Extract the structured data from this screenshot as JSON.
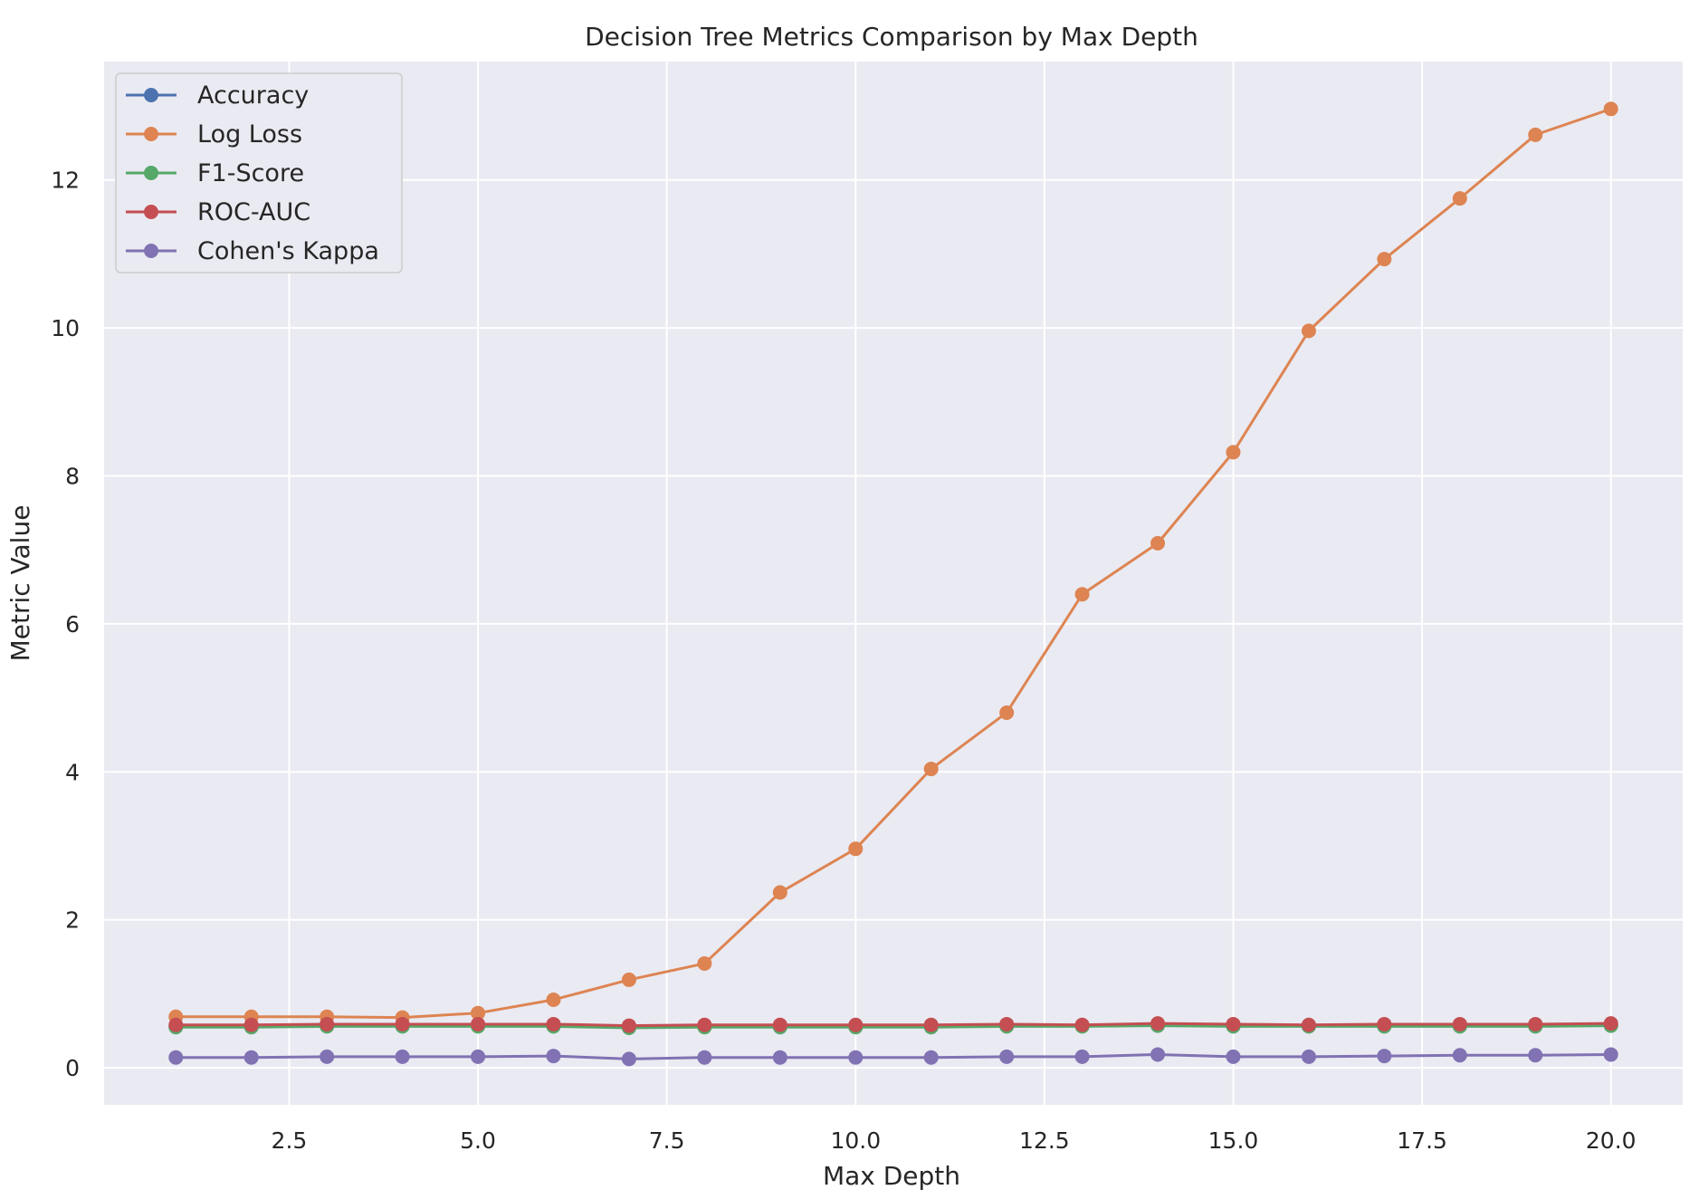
{
  "chart_data": {
    "type": "line",
    "title": "Decision Tree Metrics Comparison by Max Depth",
    "xlabel": "Max Depth",
    "ylabel": "Metric Value",
    "xlim": [
      0.05,
      20.95
    ],
    "ylim": [
      -0.5,
      13.6
    ],
    "xticks": [
      2.5,
      5.0,
      7.5,
      10.0,
      12.5,
      15.0,
      17.5,
      20.0
    ],
    "xtick_labels": [
      "2.5",
      "5.0",
      "7.5",
      "10.0",
      "12.5",
      "15.0",
      "17.5",
      "20.0"
    ],
    "yticks": [
      0,
      2,
      4,
      6,
      8,
      10,
      12
    ],
    "ytick_labels": [
      "0",
      "2",
      "4",
      "6",
      "8",
      "10",
      "12"
    ],
    "grid": true,
    "legend_position": "top-left",
    "x": [
      1,
      2,
      3,
      4,
      5,
      6,
      7,
      8,
      9,
      10,
      11,
      12,
      13,
      14,
      15,
      16,
      17,
      18,
      19,
      20
    ],
    "series": [
      {
        "name": "Accuracy",
        "color": "#4c72b0",
        "values": [
          0.56,
          0.56,
          0.57,
          0.57,
          0.57,
          0.57,
          0.55,
          0.56,
          0.56,
          0.56,
          0.56,
          0.57,
          0.57,
          0.58,
          0.57,
          0.57,
          0.57,
          0.57,
          0.57,
          0.58
        ]
      },
      {
        "name": "Log Loss",
        "color": "#dd8452",
        "values": [
          0.69,
          0.69,
          0.69,
          0.68,
          0.74,
          0.92,
          1.19,
          1.41,
          2.37,
          2.96,
          4.04,
          4.8,
          6.4,
          7.09,
          8.32,
          9.96,
          10.93,
          11.75,
          12.61,
          12.96
        ]
      },
      {
        "name": "F1-Score",
        "color": "#55a868",
        "values": [
          0.55,
          0.55,
          0.56,
          0.56,
          0.56,
          0.56,
          0.54,
          0.55,
          0.55,
          0.55,
          0.55,
          0.56,
          0.56,
          0.57,
          0.56,
          0.56,
          0.56,
          0.56,
          0.56,
          0.57
        ]
      },
      {
        "name": "ROC-AUC",
        "color": "#c44e52",
        "values": [
          0.58,
          0.58,
          0.59,
          0.59,
          0.59,
          0.59,
          0.57,
          0.58,
          0.58,
          0.58,
          0.58,
          0.59,
          0.58,
          0.6,
          0.59,
          0.58,
          0.59,
          0.59,
          0.59,
          0.6
        ]
      },
      {
        "name": "Cohen's Kappa",
        "color": "#8172b3",
        "values": [
          0.14,
          0.14,
          0.15,
          0.15,
          0.15,
          0.16,
          0.12,
          0.14,
          0.14,
          0.14,
          0.14,
          0.15,
          0.15,
          0.18,
          0.15,
          0.15,
          0.16,
          0.17,
          0.17,
          0.18
        ]
      }
    ]
  }
}
